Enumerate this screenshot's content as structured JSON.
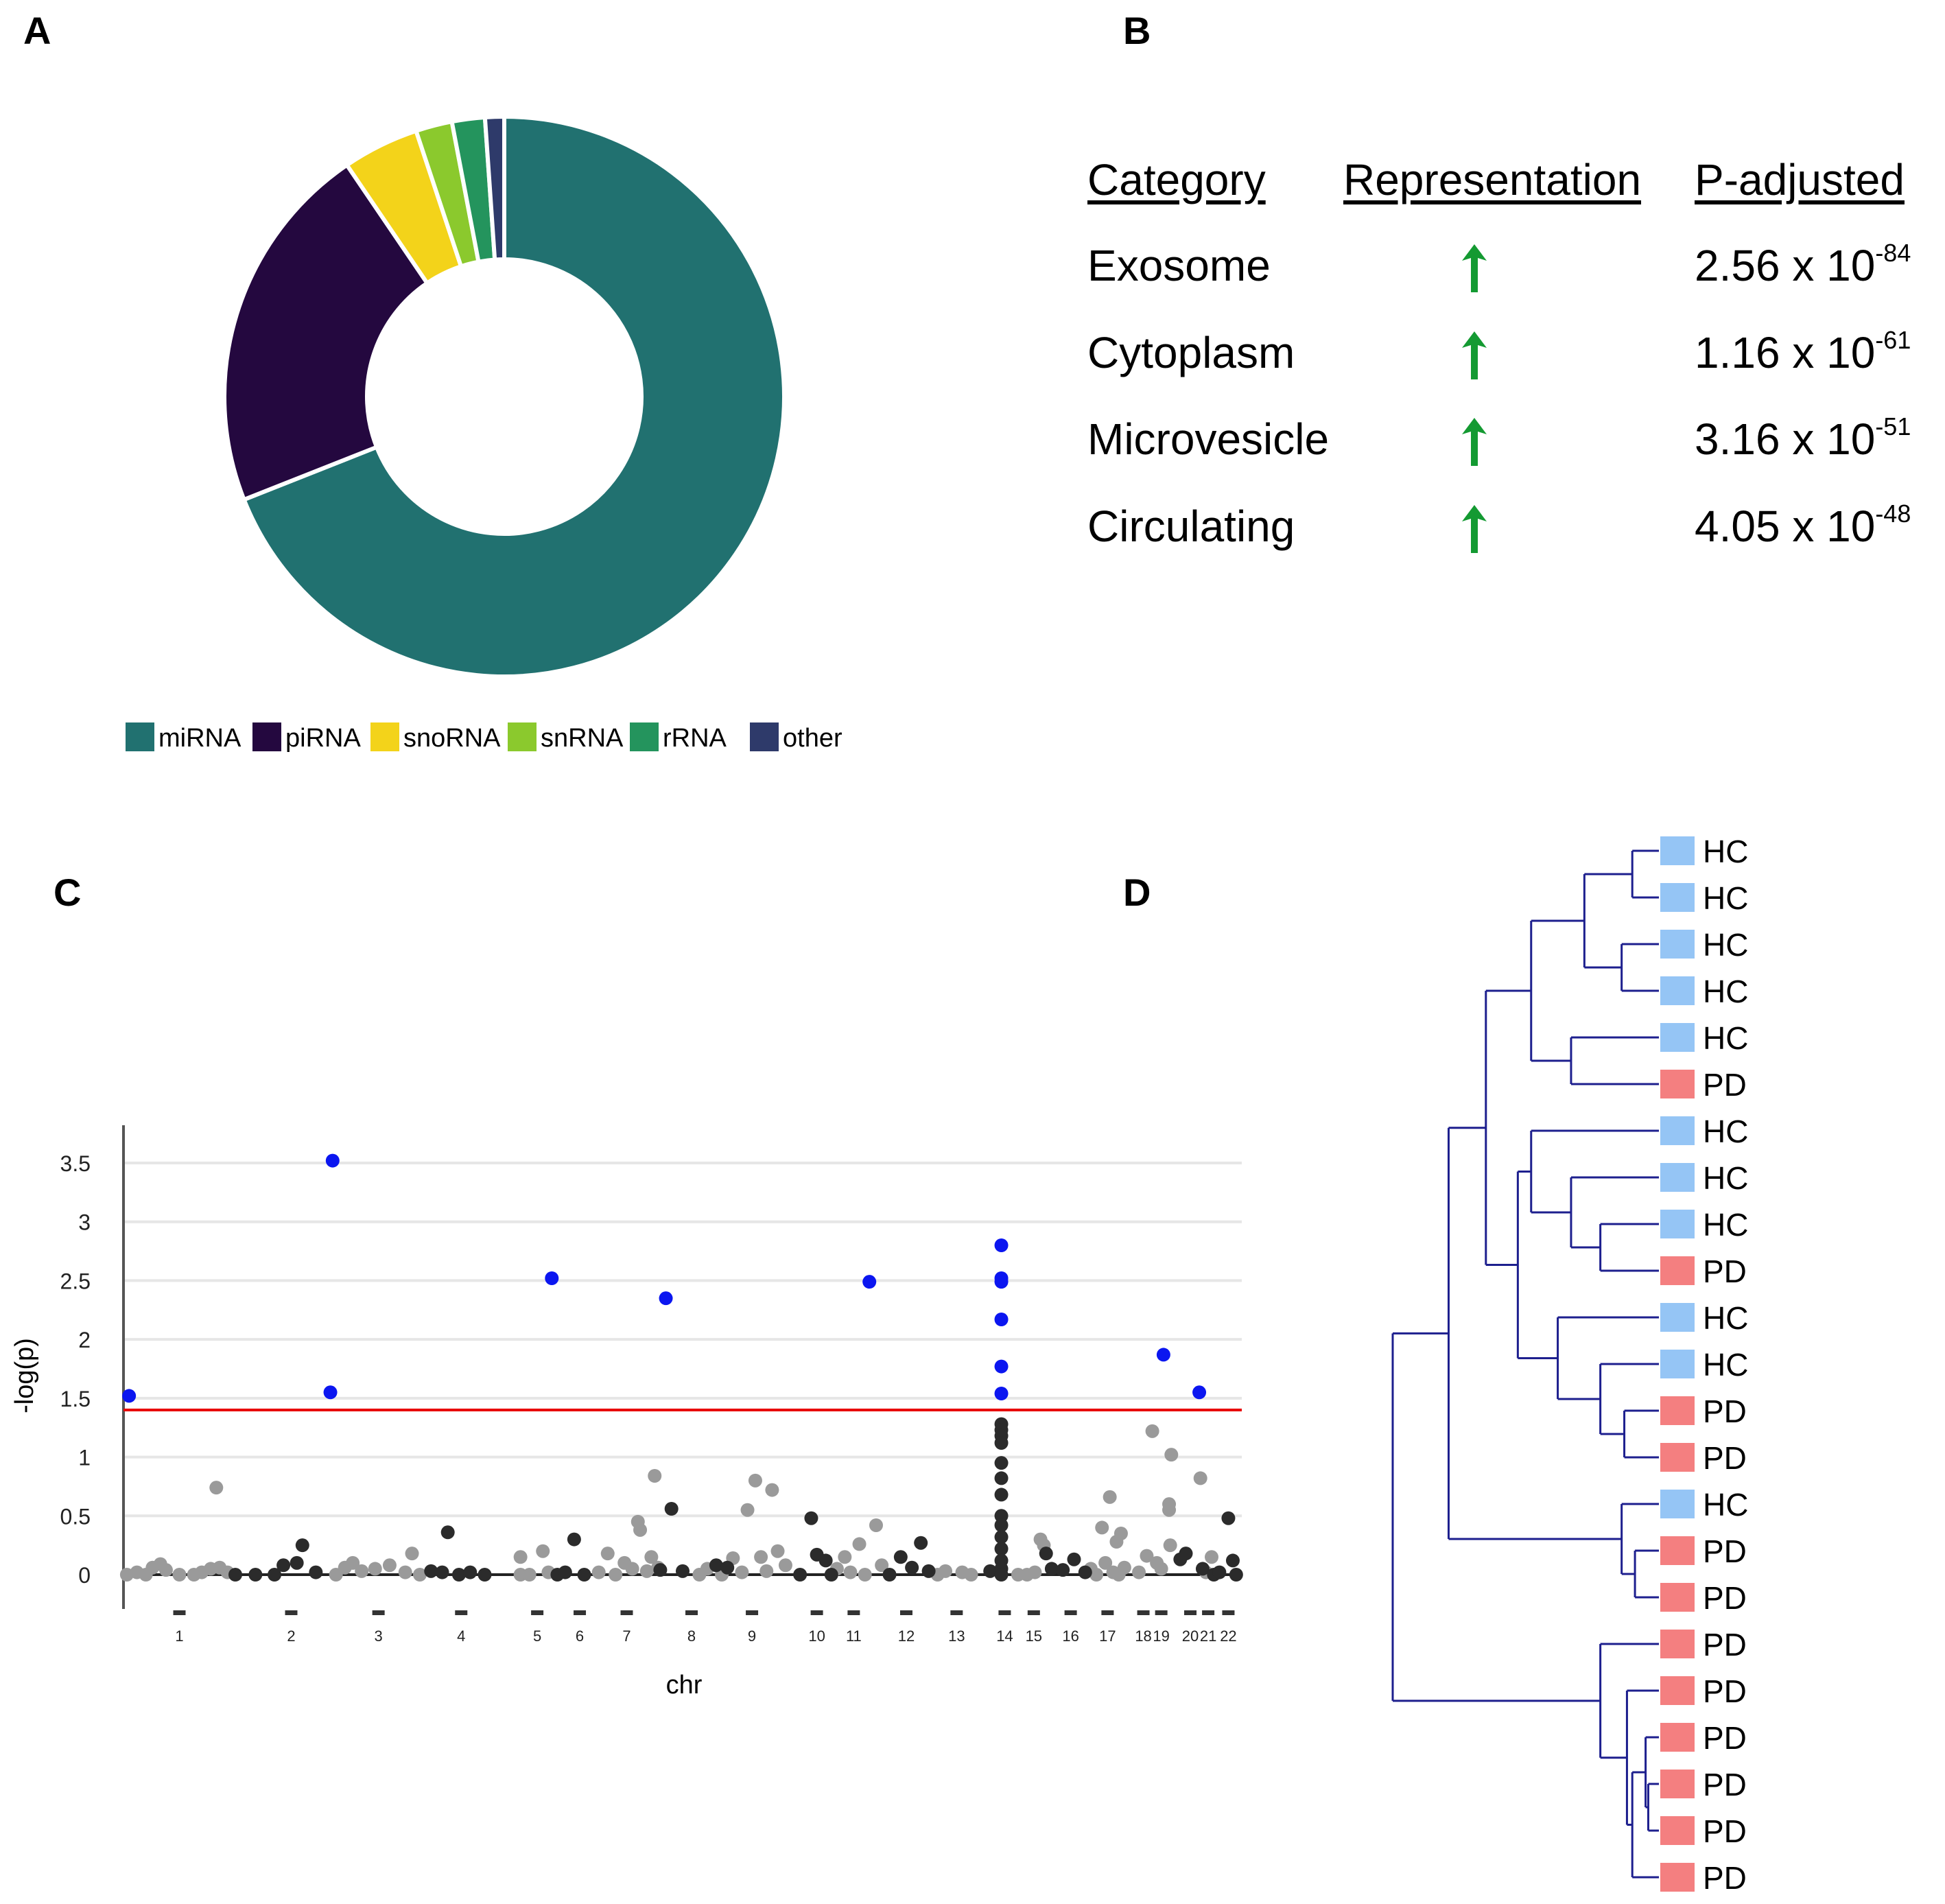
{
  "panels": {
    "a": "A",
    "b": "B",
    "c": "C",
    "d": "D"
  },
  "colors": {
    "miRNA": "#217170",
    "piRNA": "#24083f",
    "snoRNA": "#f3d31a",
    "snRNA": "#8bc92d",
    "rRNA": "#24945d",
    "other": "#2e3a6a",
    "sig": "#0b16f0",
    "dark": "#2b2b2b",
    "light": "#9a9a9a",
    "threshold": "#e80000",
    "grid": "#e6e6e6",
    "tree": "#1d1f8e",
    "HC": "#95c5f5",
    "PD": "#f47f80",
    "arrow": "#149a32"
  },
  "chart_data": [
    {
      "type": "pie",
      "subtype": "donut",
      "title": "",
      "legend_position": "bottom",
      "categories": [
        "miRNA",
        "piRNA",
        "snoRNA",
        "snRNA",
        "rRNA",
        "other"
      ],
      "values": [
        69.0,
        21.5,
        4.4,
        2.1,
        1.9,
        1.1
      ]
    },
    {
      "type": "table",
      "columns": [
        "Category",
        "Representation",
        "P-adjusted"
      ],
      "rows": [
        {
          "category": "Exosome",
          "representation": "up",
          "p_base": "2.56 x 10",
          "p_exp": "-84"
        },
        {
          "category": "Cytoplasm",
          "representation": "up",
          "p_base": "1.16 x 10",
          "p_exp": "-61"
        },
        {
          "category": "Microvesicle",
          "representation": "up",
          "p_base": "3.16 x 10",
          "p_exp": "-51"
        },
        {
          "category": "Circulating",
          "representation": "up",
          "p_base": "4.05 x 10",
          "p_exp": "-48"
        }
      ]
    },
    {
      "type": "scatter",
      "subtype": "manhattan",
      "title": "",
      "xlabel": "chr",
      "ylabel": "-log(p)",
      "ylim": [
        -0.3,
        3.85
      ],
      "xlim": [
        0,
        100
      ],
      "grid": true,
      "threshold": 1.4,
      "yticks": [
        0,
        0.5,
        1,
        1.5,
        2,
        2.5,
        3,
        3.5
      ],
      "ytick_labels": [
        "0",
        "0.5",
        "1",
        "1.5",
        "2",
        "2.5",
        "3",
        "3.5"
      ],
      "chromosomes": [
        {
          "label": "1",
          "x": 5.0
        },
        {
          "label": "2",
          "x": 15.0
        },
        {
          "label": "3",
          "x": 22.8
        },
        {
          "label": "4",
          "x": 30.2
        },
        {
          "label": "5",
          "x": 37.0
        },
        {
          "label": "6",
          "x": 40.8
        },
        {
          "label": "7",
          "x": 45.0
        },
        {
          "label": "8",
          "x": 50.8
        },
        {
          "label": "9",
          "x": 56.2
        },
        {
          "label": "10",
          "x": 62.0
        },
        {
          "label": "11",
          "x": 65.3
        },
        {
          "label": "12",
          "x": 70.0
        },
        {
          "label": "13",
          "x": 74.5
        },
        {
          "label": "14",
          "x": 78.8
        },
        {
          "label": "15",
          "x": 81.4
        },
        {
          "label": "16",
          "x": 84.7
        },
        {
          "label": "17",
          "x": 88.0
        },
        {
          "label": "18",
          "x": 91.2
        },
        {
          "label": "19",
          "x": 92.8
        },
        {
          "label": "20",
          "x": 95.4
        },
        {
          "label": "21",
          "x": 97.0
        },
        {
          "label": "22",
          "x": 98.8
        }
      ],
      "significant": [
        [
          0.5,
          1.52
        ],
        [
          18.7,
          3.52
        ],
        [
          18.5,
          1.55
        ],
        [
          38.3,
          2.52
        ],
        [
          48.5,
          2.35
        ],
        [
          66.7,
          2.49
        ],
        [
          78.5,
          2.8
        ],
        [
          78.5,
          2.52
        ],
        [
          78.5,
          2.49
        ],
        [
          78.5,
          2.17
        ],
        [
          78.5,
          1.77
        ],
        [
          78.5,
          1.54
        ],
        [
          93.0,
          1.87
        ],
        [
          96.2,
          1.55
        ]
      ],
      "dark_points": [
        [
          10,
          0.0
        ],
        [
          11.8,
          0.0
        ],
        [
          13.5,
          0.0
        ],
        [
          14.3,
          0.08
        ],
        [
          15.5,
          0.1
        ],
        [
          16.0,
          0.25
        ],
        [
          17.2,
          0.02
        ],
        [
          27.5,
          0.03
        ],
        [
          28.5,
          0.02
        ],
        [
          29.0,
          0.36
        ],
        [
          30.0,
          0.0
        ],
        [
          31.0,
          0.02
        ],
        [
          32.3,
          0.0
        ],
        [
          38.8,
          0.0
        ],
        [
          39.5,
          0.02
        ],
        [
          40.3,
          0.3
        ],
        [
          41.2,
          0.0
        ],
        [
          48.0,
          0.04
        ],
        [
          49.0,
          0.56
        ],
        [
          50.0,
          0.03
        ],
        [
          53.0,
          0.08
        ],
        [
          54.0,
          0.06
        ],
        [
          60.5,
          0.0
        ],
        [
          61.5,
          0.48
        ],
        [
          62.0,
          0.17
        ],
        [
          62.8,
          0.12
        ],
        [
          63.3,
          0.0
        ],
        [
          68.5,
          0.0
        ],
        [
          69.5,
          0.15
        ],
        [
          70.5,
          0.06
        ],
        [
          71.3,
          0.27
        ],
        [
          72.0,
          0.03
        ],
        [
          77.5,
          0.03
        ],
        [
          78.5,
          1.28
        ],
        [
          78.5,
          1.23
        ],
        [
          78.5,
          1.18
        ],
        [
          78.5,
          1.12
        ],
        [
          78.5,
          0.95
        ],
        [
          78.5,
          0.82
        ],
        [
          78.5,
          0.68
        ],
        [
          78.5,
          0.5
        ],
        [
          78.5,
          0.42
        ],
        [
          78.5,
          0.32
        ],
        [
          78.5,
          0.22
        ],
        [
          78.5,
          0.12
        ],
        [
          78.5,
          0.05
        ],
        [
          78.5,
          0.0
        ],
        [
          82.5,
          0.18
        ],
        [
          83.0,
          0.05
        ],
        [
          84.0,
          0.04
        ],
        [
          85.0,
          0.13
        ],
        [
          86.0,
          0.02
        ],
        [
          94.5,
          0.13
        ],
        [
          95.0,
          0.18
        ],
        [
          96.5,
          0.05
        ],
        [
          97.5,
          0.0
        ],
        [
          98.8,
          0.48
        ],
        [
          99.2,
          0.12
        ],
        [
          98.0,
          0.02
        ],
        [
          99.5,
          0.0
        ]
      ],
      "light_points": [
        [
          0.3,
          0.0
        ],
        [
          1.2,
          0.02
        ],
        [
          2.0,
          0.0
        ],
        [
          2.6,
          0.06
        ],
        [
          3.3,
          0.09
        ],
        [
          3.8,
          0.04
        ],
        [
          5.0,
          0.0
        ],
        [
          6.3,
          0.0
        ],
        [
          7.0,
          0.02
        ],
        [
          7.8,
          0.05
        ],
        [
          8.3,
          0.74
        ],
        [
          8.6,
          0.06
        ],
        [
          9.3,
          0.02
        ],
        [
          19.0,
          0.0
        ],
        [
          19.8,
          0.06
        ],
        [
          20.5,
          0.1
        ],
        [
          21.3,
          0.03
        ],
        [
          22.5,
          0.05
        ],
        [
          23.8,
          0.08
        ],
        [
          25.2,
          0.02
        ],
        [
          25.8,
          0.18
        ],
        [
          26.5,
          0.0
        ],
        [
          35.5,
          0.15
        ],
        [
          35.5,
          0.0
        ],
        [
          36.3,
          0.0
        ],
        [
          37.5,
          0.2
        ],
        [
          38.0,
          0.02
        ],
        [
          42.5,
          0.02
        ],
        [
          43.3,
          0.18
        ],
        [
          44.0,
          0.0
        ],
        [
          44.8,
          0.1
        ],
        [
          45.5,
          0.05
        ],
        [
          46.0,
          0.45
        ],
        [
          46.2,
          0.38
        ],
        [
          46.8,
          0.03
        ],
        [
          47.5,
          0.84
        ],
        [
          47.2,
          0.15
        ],
        [
          47.8,
          0.06
        ],
        [
          51.5,
          0.0
        ],
        [
          52.2,
          0.05
        ],
        [
          53.5,
          0.0
        ],
        [
          54.5,
          0.14
        ],
        [
          55.3,
          0.02
        ],
        [
          55.8,
          0.55
        ],
        [
          56.5,
          0.8
        ],
        [
          57.0,
          0.15
        ],
        [
          57.5,
          0.03
        ],
        [
          58.0,
          0.72
        ],
        [
          58.5,
          0.2
        ],
        [
          59.2,
          0.08
        ],
        [
          63.8,
          0.05
        ],
        [
          64.5,
          0.15
        ],
        [
          65.0,
          0.02
        ],
        [
          65.8,
          0.26
        ],
        [
          66.3,
          0.0
        ],
        [
          67.3,
          0.42
        ],
        [
          67.8,
          0.08
        ],
        [
          72.8,
          0.0
        ],
        [
          73.5,
          0.03
        ],
        [
          75.0,
          0.02
        ],
        [
          75.8,
          0.0
        ],
        [
          80.0,
          0.0
        ],
        [
          80.8,
          0.0
        ],
        [
          81.5,
          0.02
        ],
        [
          82.0,
          0.3
        ],
        [
          82.3,
          0.25
        ],
        [
          86.5,
          0.05
        ],
        [
          87.0,
          0.0
        ],
        [
          87.5,
          0.4
        ],
        [
          87.8,
          0.1
        ],
        [
          88.2,
          0.66
        ],
        [
          88.8,
          0.28
        ],
        [
          89.2,
          0.35
        ],
        [
          89.5,
          0.06
        ],
        [
          89.0,
          0.0
        ],
        [
          88.5,
          0.02
        ],
        [
          90.8,
          0.02
        ],
        [
          91.5,
          0.16
        ],
        [
          92.0,
          1.22
        ],
        [
          92.4,
          0.1
        ],
        [
          93.5,
          0.6
        ],
        [
          93.5,
          0.55
        ],
        [
          93.7,
          1.02
        ],
        [
          93.6,
          0.25
        ],
        [
          92.8,
          0.05
        ],
        [
          96.3,
          0.82
        ],
        [
          96.8,
          0.02
        ],
        [
          97.3,
          0.15
        ]
      ]
    },
    {
      "type": "dendrogram",
      "leaves": [
        "HC",
        "HC",
        "HC",
        "HC",
        "HC",
        "PD",
        "HC",
        "HC",
        "HC",
        "PD",
        "HC",
        "HC",
        "PD",
        "PD",
        "HC",
        "PD",
        "PD",
        "PD",
        "PD",
        "PD",
        "PD",
        "PD",
        "PD"
      ],
      "merges": [
        [
          0,
          1,
          0.9
        ],
        [
          2,
          3,
          0.86
        ],
        [
          23,
          24,
          0.72
        ],
        [
          4,
          5,
          0.67
        ],
        [
          25,
          26,
          0.52
        ],
        [
          8,
          9,
          0.78
        ],
        [
          7,
          28,
          0.67
        ],
        [
          6,
          29,
          0.52
        ],
        [
          12,
          13,
          0.87
        ],
        [
          11,
          31,
          0.78
        ],
        [
          10,
          32,
          0.62
        ],
        [
          30,
          33,
          0.47
        ],
        [
          27,
          34,
          0.35
        ],
        [
          15,
          16,
          0.91
        ],
        [
          14,
          36,
          0.86
        ],
        [
          35,
          37,
          0.21
        ],
        [
          20,
          21,
          0.96
        ],
        [
          19,
          39,
          0.95
        ],
        [
          22,
          40,
          0.9
        ],
        [
          18,
          41,
          0.88
        ],
        [
          17,
          42,
          0.78
        ],
        [
          38,
          43,
          0.0
        ]
      ]
    }
  ]
}
